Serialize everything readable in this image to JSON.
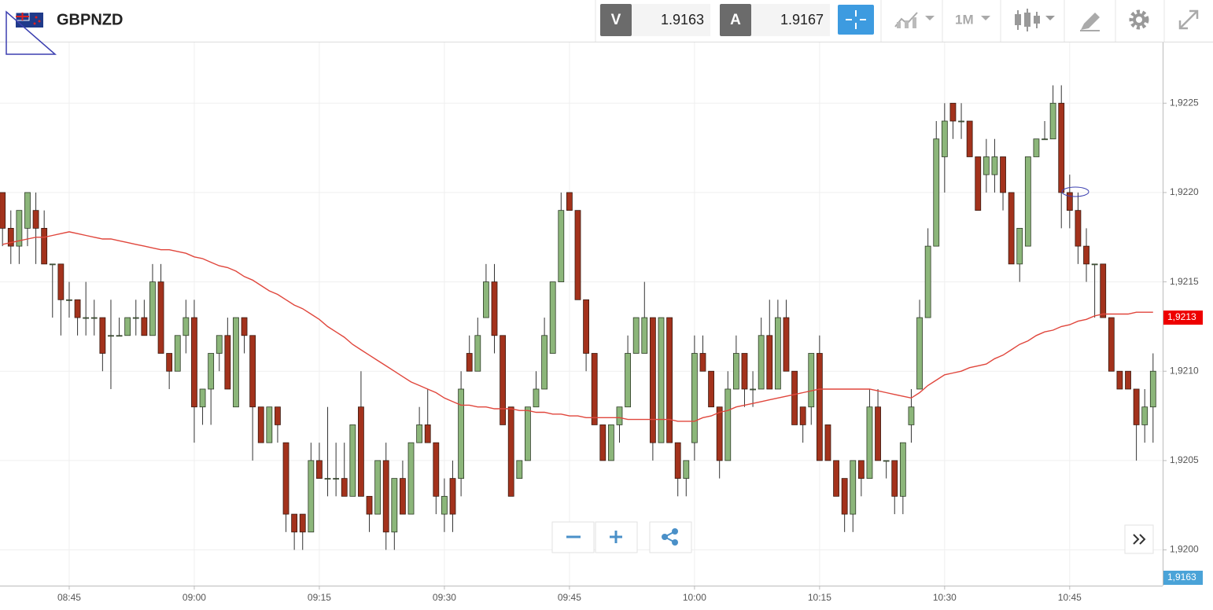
{
  "toolbar": {
    "symbol": "GBPNZD",
    "bid_tag": "V",
    "bid": 1.9163,
    "ask_tag": "A",
    "ask": 1.9167,
    "timeframe": "1M"
  },
  "chart_data": {
    "type": "candlestick",
    "x": [
      517,
      518,
      519,
      520,
      521,
      522,
      523,
      524,
      525,
      526,
      527,
      528,
      529,
      530,
      531,
      532,
      533,
      534,
      535,
      536,
      537,
      538,
      539,
      540,
      541,
      542,
      543,
      544,
      545,
      546,
      547,
      548,
      549,
      550,
      551,
      552,
      553,
      554,
      555,
      556,
      557,
      558,
      559,
      560,
      561,
      562,
      563,
      564,
      565,
      566,
      567,
      568,
      569,
      570,
      571,
      572,
      573,
      574,
      575,
      576,
      577,
      578,
      579,
      580,
      581,
      582,
      583,
      584,
      585,
      586,
      587,
      588,
      589,
      590,
      591,
      592,
      593,
      594,
      595,
      596,
      597,
      598,
      599,
      600,
      601,
      602,
      603,
      604,
      605,
      606,
      607,
      608,
      609,
      610,
      611,
      612,
      613,
      614,
      615,
      616,
      617,
      618,
      619,
      620,
      621,
      622,
      623,
      624,
      625,
      626,
      627,
      628,
      629,
      630,
      631,
      632,
      633,
      634,
      635,
      636,
      637,
      638,
      639,
      640,
      641,
      642,
      643,
      644,
      645,
      646,
      647,
      648,
      649,
      650,
      651,
      652,
      653,
      654,
      655
    ],
    "open": [
      1.922,
      1.9218,
      1.9217,
      1.9218,
      1.9219,
      1.9218,
      1.9216,
      1.9216,
      1.9214,
      1.9214,
      1.9213,
      1.9213,
      1.9213,
      1.9212,
      1.9212,
      1.9212,
      1.9213,
      1.9213,
      1.9212,
      1.9215,
      1.9211,
      1.921,
      1.9212,
      1.9213,
      1.9208,
      1.9209,
      1.9211,
      1.9212,
      1.9208,
      1.9213,
      1.9212,
      1.9208,
      1.9206,
      1.9208,
      1.9206,
      1.9202,
      1.9202,
      1.9201,
      1.9205,
      1.9204,
      1.9204,
      1.9204,
      1.9203,
      1.9208,
      1.9203,
      1.9202,
      1.9205,
      1.9201,
      1.9204,
      1.9202,
      1.9206,
      1.9207,
      1.9206,
      1.9202,
      1.9204,
      1.9204,
      1.9211,
      1.921,
      1.9213,
      1.9215,
      1.9212,
      1.9208,
      1.9204,
      1.9205,
      1.9208,
      1.9209,
      1.9211,
      1.9215,
      1.922,
      1.9219,
      1.9214,
      1.9211,
      1.9207,
      1.9205,
      1.9207,
      1.9208,
      1.9211,
      1.9211,
      1.9213,
      1.9206,
      1.9213,
      1.9206,
      1.9204,
      1.9206,
      1.9211,
      1.921,
      1.9208,
      1.9205,
      1.9209,
      1.9211,
      1.9209,
      1.9209,
      1.9212,
      1.9209,
      1.9213,
      1.921,
      1.9208,
      1.9208,
      1.9211,
      1.9207,
      1.9205,
      1.9204,
      1.9202,
      1.9205,
      1.9204,
      1.9208,
      1.9205,
      1.9205,
      1.9203,
      1.9207,
      1.9209,
      1.9213,
      1.9217,
      1.9222,
      1.9225,
      1.9224,
      1.9224,
      1.9222,
      1.9221,
      1.9221,
      1.9222,
      1.922,
      1.9216,
      1.9217,
      1.9222,
      1.9223,
      1.9223,
      1.9225,
      1.922,
      1.9219,
      1.9217,
      1.9216,
      1.9216,
      1.9213,
      1.921,
      1.921,
      1.9209,
      1.9207,
      1.9208
    ],
    "high": [
      1.922,
      1.9219,
      1.9219,
      1.922,
      1.922,
      1.9219,
      1.9216,
      1.9216,
      1.9215,
      1.9214,
      1.9215,
      1.9214,
      1.9213,
      1.9214,
      1.9213,
      1.9213,
      1.9214,
      1.9214,
      1.9216,
      1.9216,
      1.9211,
      1.9212,
      1.9214,
      1.9214,
      1.9209,
      1.9211,
      1.9212,
      1.9213,
      1.9213,
      1.9213,
      1.9212,
      1.9208,
      1.9208,
      1.9208,
      1.9206,
      1.9202,
      1.9202,
      1.9206,
      1.9206,
      1.9208,
      1.9206,
      1.9206,
      1.9207,
      1.921,
      1.9203,
      1.9205,
      1.9206,
      1.9204,
      1.9205,
      1.9206,
      1.9208,
      1.9209,
      1.9206,
      1.9204,
      1.9205,
      1.921,
      1.9212,
      1.9213,
      1.9216,
      1.9216,
      1.9212,
      1.9208,
      1.9205,
      1.9208,
      1.921,
      1.9213,
      1.9215,
      1.922,
      1.922,
      1.9219,
      1.9214,
      1.9211,
      1.9207,
      1.9207,
      1.9208,
      1.9212,
      1.9213,
      1.9215,
      1.9213,
      1.9213,
      1.9213,
      1.9206,
      1.9205,
      1.9212,
      1.9212,
      1.921,
      1.9208,
      1.921,
      1.9212,
      1.9211,
      1.921,
      1.9213,
      1.9214,
      1.9214,
      1.9214,
      1.921,
      1.9208,
      1.9211,
      1.9212,
      1.9207,
      1.9205,
      1.9204,
      1.9205,
      1.9205,
      1.9209,
      1.9209,
      1.9205,
      1.9205,
      1.9206,
      1.9209,
      1.9214,
      1.9218,
      1.9224,
      1.9225,
      1.9225,
      1.9225,
      1.9224,
      1.9222,
      1.9223,
      1.9223,
      1.9222,
      1.922,
      1.9218,
      1.9222,
      1.9223,
      1.9224,
      1.9226,
      1.9226,
      1.9221,
      1.922,
      1.9218,
      1.9216,
      1.9216,
      1.9213,
      1.921,
      1.921,
      1.9209,
      1.9209,
      1.9211
    ],
    "low": [
      1.9217,
      1.9216,
      1.9216,
      1.9217,
      1.9216,
      1.9216,
      1.9213,
      1.9212,
      1.9213,
      1.9212,
      1.9212,
      1.9212,
      1.921,
      1.9209,
      1.9212,
      1.9212,
      1.9212,
      1.9212,
      1.9212,
      1.9211,
      1.9209,
      1.921,
      1.9211,
      1.9206,
      1.9207,
      1.9207,
      1.921,
      1.9209,
      1.9208,
      1.9211,
      1.9205,
      1.9206,
      1.9206,
      1.9206,
      1.9201,
      1.92,
      1.92,
      1.9201,
      1.9204,
      1.9203,
      1.9203,
      1.9203,
      1.9203,
      1.9203,
      1.9201,
      1.9202,
      1.92,
      1.92,
      1.9202,
      1.9202,
      1.9206,
      1.9206,
      1.9202,
      1.9201,
      1.9201,
      1.9203,
      1.921,
      1.921,
      1.9213,
      1.9211,
      1.9207,
      1.9203,
      1.9204,
      1.9205,
      1.9208,
      1.9209,
      1.9211,
      1.9215,
      1.9219,
      1.9214,
      1.921,
      1.9207,
      1.9205,
      1.9205,
      1.9206,
      1.9208,
      1.9211,
      1.9211,
      1.9205,
      1.9206,
      1.9206,
      1.9203,
      1.9203,
      1.9205,
      1.921,
      1.9208,
      1.9204,
      1.9205,
      1.9209,
      1.9208,
      1.9208,
      1.9209,
      1.9209,
      1.9209,
      1.921,
      1.9207,
      1.9206,
      1.9207,
      1.9205,
      1.9205,
      1.9203,
      1.9201,
      1.9201,
      1.9203,
      1.9204,
      1.9205,
      1.9204,
      1.9202,
      1.9202,
      1.9206,
      1.9209,
      1.9213,
      1.9217,
      1.922,
      1.9223,
      1.9223,
      1.9222,
      1.9219,
      1.922,
      1.922,
      1.9219,
      1.9216,
      1.9215,
      1.9217,
      1.9222,
      1.9223,
      1.9223,
      1.9218,
      1.9218,
      1.9216,
      1.9215,
      1.9213,
      1.9213,
      1.921,
      1.9209,
      1.9209,
      1.9205,
      1.9206,
      1.9206
    ],
    "close": [
      1.9218,
      1.9217,
      1.9219,
      1.922,
      1.9218,
      1.9216,
      1.9216,
      1.9214,
      1.9214,
      1.9213,
      1.9213,
      1.9213,
      1.9211,
      1.9212,
      1.9212,
      1.9213,
      1.9213,
      1.9212,
      1.9215,
      1.9211,
      1.921,
      1.9212,
      1.9213,
      1.9208,
      1.9209,
      1.9211,
      1.9212,
      1.9209,
      1.9213,
      1.9212,
      1.9208,
      1.9206,
      1.9208,
      1.9207,
      1.9202,
      1.9201,
      1.9201,
      1.9205,
      1.9204,
      1.9204,
      1.9204,
      1.9203,
      1.9207,
      1.9203,
      1.9202,
      1.9205,
      1.9201,
      1.9204,
      1.9202,
      1.9206,
      1.9207,
      1.9206,
      1.9203,
      1.9203,
      1.9202,
      1.9209,
      1.921,
      1.9212,
      1.9215,
      1.9212,
      1.9207,
      1.9203,
      1.9205,
      1.9208,
      1.9209,
      1.9212,
      1.9215,
      1.9219,
      1.9219,
      1.9214,
      1.9211,
      1.9207,
      1.9205,
      1.9207,
      1.9208,
      1.9211,
      1.9213,
      1.9213,
      1.9206,
      1.9213,
      1.9206,
      1.9204,
      1.9205,
      1.9211,
      1.921,
      1.9208,
      1.9205,
      1.9209,
      1.9211,
      1.9209,
      1.9209,
      1.9212,
      1.9209,
      1.9213,
      1.921,
      1.9207,
      1.9207,
      1.9211,
      1.9205,
      1.9205,
      1.9203,
      1.9202,
      1.9205,
      1.9204,
      1.9208,
      1.9205,
      1.9205,
      1.9203,
      1.9206,
      1.9208,
      1.9213,
      1.9217,
      1.9223,
      1.9224,
      1.9224,
      1.9224,
      1.9222,
      1.9219,
      1.9222,
      1.9222,
      1.922,
      1.9216,
      1.9218,
      1.9222,
      1.9223,
      1.9223,
      1.9225,
      1.922,
      1.9219,
      1.9217,
      1.9216,
      1.9216,
      1.9213,
      1.921,
      1.9209,
      1.9209,
      1.9207,
      1.9208,
      1.921
    ],
    "up_color": "#8cb67a",
    "down_color": "#a3321c",
    "ma": {
      "color": "#e0463c",
      "values": [
        1.92171,
        1.92172,
        1.92173,
        1.92174,
        1.92175,
        1.92175,
        1.92176,
        1.92177,
        1.92178,
        1.92177,
        1.92176,
        1.92175,
        1.92174,
        1.92174,
        1.92173,
        1.92172,
        1.92171,
        1.9217,
        1.92169,
        1.92168,
        1.92168,
        1.92167,
        1.92166,
        1.92164,
        1.92163,
        1.92161,
        1.92159,
        1.92158,
        1.92156,
        1.92153,
        1.92151,
        1.92148,
        1.92145,
        1.92143,
        1.9214,
        1.92137,
        1.92135,
        1.92132,
        1.92129,
        1.92125,
        1.92122,
        1.92119,
        1.92115,
        1.92112,
        1.92109,
        1.92106,
        1.92103,
        1.921,
        1.92097,
        1.92094,
        1.92092,
        1.9209,
        1.92088,
        1.92085,
        1.92083,
        1.92081,
        1.92081,
        1.9208,
        1.9208,
        1.92079,
        1.92079,
        1.92079,
        1.92078,
        1.92078,
        1.92077,
        1.92077,
        1.92076,
        1.92076,
        1.92075,
        1.92075,
        1.92074,
        1.92074,
        1.92074,
        1.92074,
        1.92074,
        1.92073,
        1.92073,
        1.92073,
        1.92073,
        1.92073,
        1.92073,
        1.92072,
        1.92072,
        1.92072,
        1.92074,
        1.92075,
        1.92077,
        1.92078,
        1.9208,
        1.92081,
        1.92082,
        1.92083,
        1.92084,
        1.92085,
        1.92086,
        1.92087,
        1.92088,
        1.92089,
        1.9209,
        1.9209,
        1.9209,
        1.9209,
        1.9209,
        1.9209,
        1.9209,
        1.92089,
        1.92088,
        1.92087,
        1.92086,
        1.92085,
        1.92088,
        1.92092,
        1.92095,
        1.92098,
        1.92099,
        1.921,
        1.92102,
        1.92103,
        1.92104,
        1.92107,
        1.92109,
        1.92112,
        1.92115,
        1.92117,
        1.9212,
        1.92122,
        1.92123,
        1.92125,
        1.92126,
        1.92128,
        1.92129,
        1.92131,
        1.92132,
        1.92132,
        1.92132,
        1.92132,
        1.92133,
        1.92133,
        1.92133
      ]
    },
    "xlim": [
      516.7,
      656.15
    ],
    "xticks": [
      {
        "value": 525,
        "label": "08:45"
      },
      {
        "value": 540,
        "label": "09:00"
      },
      {
        "value": 555,
        "label": "09:15"
      },
      {
        "value": 570,
        "label": "09:30"
      },
      {
        "value": 585,
        "label": "09:45"
      },
      {
        "value": 600,
        "label": "10:00"
      },
      {
        "value": 615,
        "label": "10:15"
      },
      {
        "value": 630,
        "label": "10:30"
      },
      {
        "value": 645,
        "label": "10:45"
      }
    ],
    "ylim": [
      1.9198,
      1.92284
    ],
    "yticks": [
      {
        "value": 1.92,
        "label": "1,9200"
      },
      {
        "value": 1.9205,
        "label": "1,9205"
      },
      {
        "value": 1.921,
        "label": "1,9210"
      },
      {
        "value": 1.9215,
        "label": "1,9215"
      },
      {
        "value": 1.922,
        "label": "1,9220"
      },
      {
        "value": 1.9225,
        "label": "1,9225"
      }
    ],
    "grid": true,
    "price_markers": [
      {
        "value": 1.9213,
        "label": "1,9213",
        "color": "#ee0000"
      },
      {
        "value": 1.9163,
        "label": "1,9163",
        "color": "#4aa3d8"
      }
    ]
  }
}
